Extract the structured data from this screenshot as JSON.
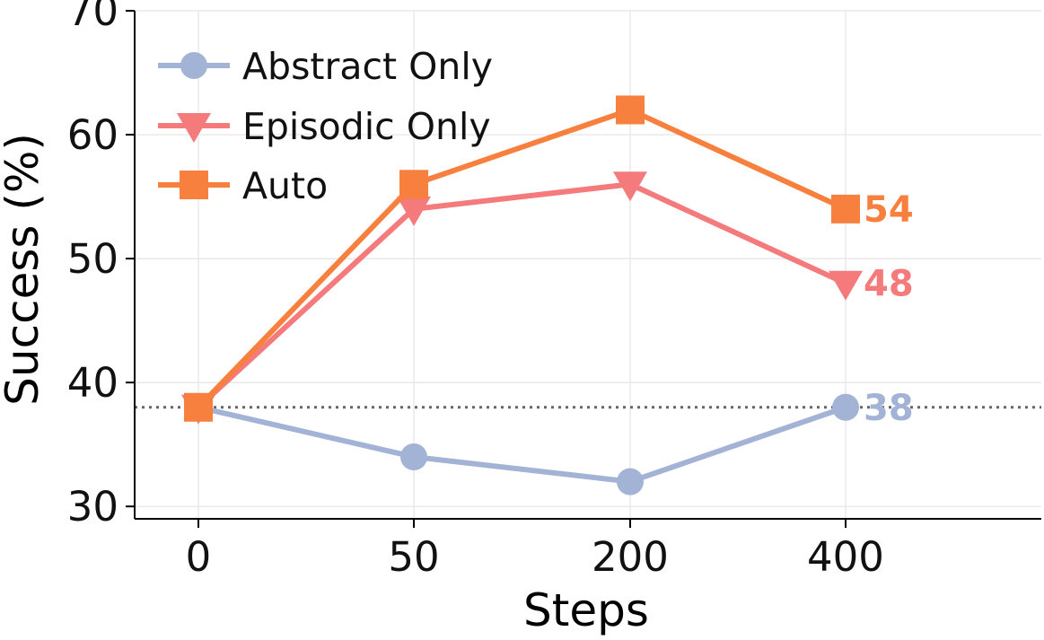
{
  "chart_data": {
    "type": "line",
    "title": "",
    "xlabel": "Steps",
    "ylabel": "Success (%)",
    "categories": [
      "0",
      "50",
      "200",
      "400"
    ],
    "ylim": [
      29,
      70
    ],
    "yticks": [
      30,
      40,
      50,
      60,
      70
    ],
    "grid": true,
    "legend_position": "top-left",
    "reference_line": {
      "y": 38,
      "style": "dotted",
      "color": "#666666"
    },
    "series": [
      {
        "name": "Abstract Only",
        "values": [
          38,
          34,
          32,
          38
        ],
        "color": "#a3b3d6",
        "marker": "circle",
        "end_label": "38"
      },
      {
        "name": "Episodic Only",
        "values": [
          38,
          54,
          56,
          48
        ],
        "color": "#f47a7c",
        "marker": "triangle-down",
        "end_label": "48"
      },
      {
        "name": "Auto",
        "values": [
          38,
          56,
          62,
          54
        ],
        "color": "#f7803f",
        "marker": "square",
        "end_label": "54"
      }
    ]
  }
}
